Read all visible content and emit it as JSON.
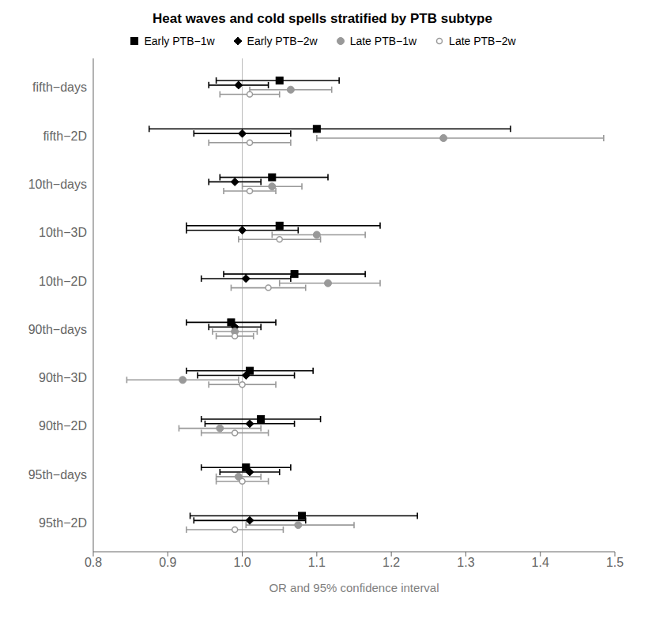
{
  "chart_data": {
    "type": "forest",
    "title": "Heat waves and cold spells stratified by PTB subtype",
    "x_label": "OR and 95% confidence interval",
    "xlim": [
      0.8,
      1.5
    ],
    "xticks": [
      0.8,
      0.9,
      {
        "value": 1.0,
        "label": "1.0"
      },
      1.1,
      1.2,
      1.3,
      1.4,
      1.5
    ],
    "ref_line": 1.0,
    "grid": false,
    "legend": "top",
    "categories": [
      "fifth−days",
      "fifth−2D",
      "10th−days",
      "10th−3D",
      "10th−2D",
      "90th−days",
      "90th−3D",
      "90th−2D",
      "95th−days",
      "95th−2D"
    ],
    "series": [
      {
        "name": "Early PTB−1w",
        "color": "#000000",
        "marker": "square",
        "values": [
          1.05,
          1.1,
          1.04,
          1.05,
          1.07,
          0.985,
          1.01,
          1.025,
          1.005,
          1.08
        ],
        "lo": [
          0.965,
          0.875,
          0.97,
          0.925,
          0.975,
          0.925,
          0.925,
          0.945,
          0.945,
          0.93
        ],
        "hi": [
          1.13,
          1.36,
          1.115,
          1.185,
          1.165,
          1.045,
          1.095,
          1.105,
          1.065,
          1.235
        ]
      },
      {
        "name": "Early PTB−2w",
        "color": "#000000",
        "marker": "diamond",
        "values": [
          0.995,
          1.0,
          0.99,
          1.0,
          1.005,
          0.99,
          1.005,
          1.01,
          1.01,
          1.01
        ],
        "lo": [
          0.955,
          0.935,
          0.955,
          0.925,
          0.945,
          0.955,
          0.94,
          0.95,
          0.97,
          0.935
        ],
        "hi": [
          1.035,
          1.065,
          1.025,
          1.075,
          1.065,
          1.025,
          1.07,
          1.07,
          1.05,
          1.085
        ]
      },
      {
        "name": "Late PTB−1w",
        "color": "#999999",
        "marker": "circle",
        "values": [
          1.065,
          1.27,
          1.04,
          1.1,
          1.115,
          0.99,
          0.92,
          0.97,
          0.995,
          1.075
        ],
        "lo": [
          1.01,
          1.1,
          1.0,
          1.04,
          1.05,
          0.96,
          0.845,
          0.915,
          0.965,
          1.005
        ],
        "hi": [
          1.12,
          1.485,
          1.08,
          1.165,
          1.185,
          1.02,
          0.995,
          1.025,
          1.025,
          1.15
        ]
      },
      {
        "name": "Late PTB−2w",
        "color": "#999999",
        "marker": "ring",
        "values": [
          1.01,
          1.01,
          1.01,
          1.05,
          1.035,
          0.99,
          1.0,
          0.99,
          1.0,
          0.99
        ],
        "lo": [
          0.97,
          0.955,
          0.975,
          0.995,
          0.985,
          0.965,
          0.955,
          0.945,
          0.965,
          0.925
        ],
        "hi": [
          1.05,
          1.065,
          1.045,
          1.105,
          1.085,
          1.015,
          1.045,
          1.035,
          1.035,
          1.055
        ]
      }
    ]
  }
}
